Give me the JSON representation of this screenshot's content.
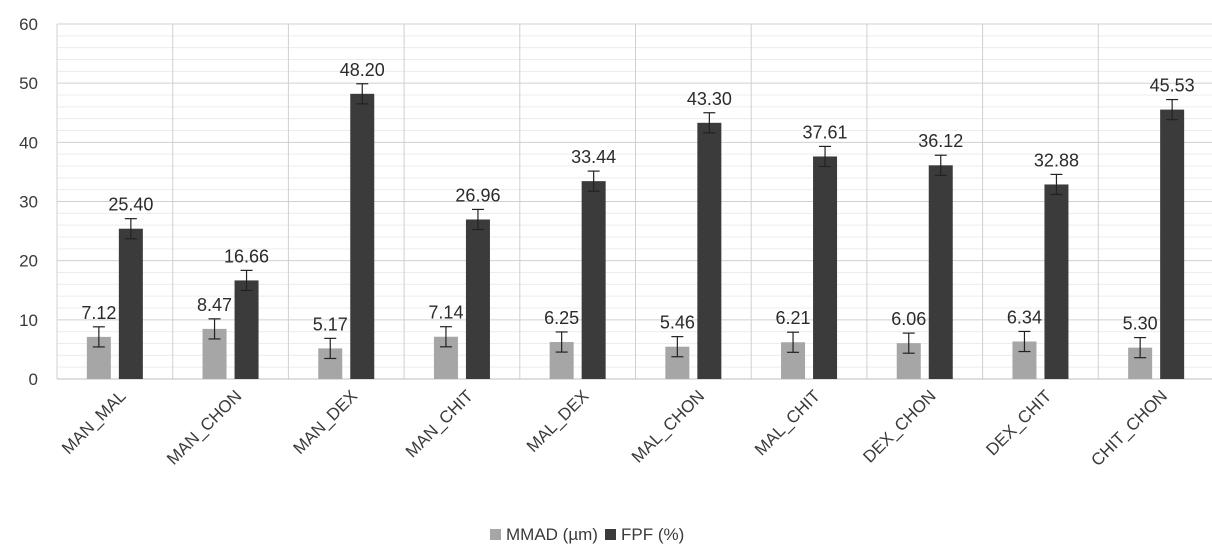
{
  "chart_data": {
    "type": "bar",
    "title": "",
    "xlabel": "",
    "ylabel": "",
    "ylim": [
      0,
      60
    ],
    "yticks": [
      "0",
      "10",
      "20",
      "30",
      "40",
      "50",
      "60"
    ],
    "grid": true,
    "legend_position": "bottom",
    "categories": [
      "MAN_MAL",
      "MAN_CHON",
      "MAN_DEX",
      "MAN_CHIT",
      "MAL_DEX",
      "MAL_CHON",
      "MAL_CHIT",
      "DEX_CHON",
      "DEX_CHIT",
      "CHIT_CHON"
    ],
    "series": [
      {
        "name": "MMAD (µm)",
        "color": "#a6a6a6",
        "values": [
          7.12,
          8.47,
          5.17,
          7.14,
          6.25,
          5.46,
          6.21,
          6.06,
          6.34,
          5.3
        ],
        "labels": [
          "7.12",
          "8.47",
          "5.17",
          "7.14",
          "6.25",
          "5.46",
          "6.21",
          "6.06",
          "6.34",
          "5.30"
        ],
        "error": [
          1.7,
          1.7,
          1.7,
          1.7,
          1.7,
          1.7,
          1.7,
          1.7,
          1.7,
          1.7
        ]
      },
      {
        "name": "FPF (%)",
        "color": "#3b3b3b",
        "values": [
          25.4,
          16.66,
          48.2,
          26.96,
          33.44,
          43.3,
          37.61,
          36.12,
          32.88,
          45.53
        ],
        "labels": [
          "25.40",
          "16.66",
          "48.20",
          "26.96",
          "33.44",
          "43.30",
          "37.61",
          "36.12",
          "32.88",
          "45.53"
        ],
        "error": [
          1.7,
          1.7,
          1.7,
          1.7,
          1.7,
          1.7,
          1.7,
          1.7,
          1.7,
          1.7
        ]
      }
    ]
  }
}
